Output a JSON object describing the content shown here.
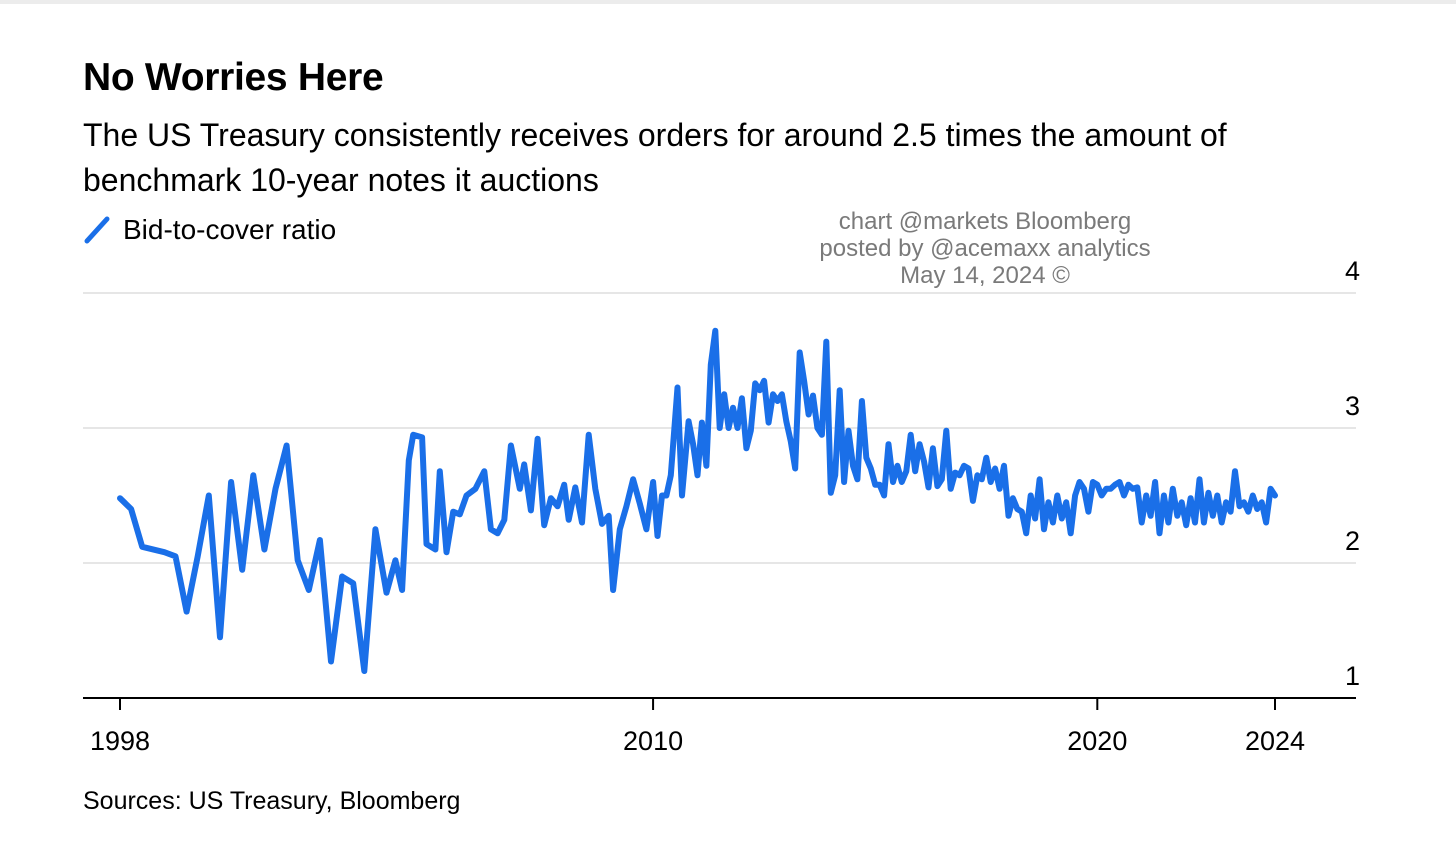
{
  "title": "No Worries Here",
  "subtitle": "The US Treasury consistently receives orders for around 2.5 times the amount of benchmark 10-year notes it auctions",
  "source": "Sources: US Treasury, Bloomberg",
  "watermark": {
    "line1": "chart @markets Bloomberg",
    "line2": "posted by @acemaxx analytics",
    "line3": "May 14, 2024 ©"
  },
  "colors": {
    "series": "#1a6fe8",
    "grid": "#e6e6e6",
    "axis": "#000000"
  },
  "chart_data": {
    "type": "line",
    "legend_placement": "top-left",
    "grid": true,
    "xlim": [
      1998,
      2025.5
    ],
    "ylim": [
      1,
      4
    ],
    "y_ticks": [
      1,
      2,
      3,
      4
    ],
    "x_ticks": [
      1998,
      2010,
      2020,
      2024
    ],
    "series": [
      {
        "name": "Bid-to-cover ratio",
        "points": [
          [
            1998.0,
            2.48
          ],
          [
            1998.25,
            2.4
          ],
          [
            1998.5,
            2.12
          ],
          [
            1999.0,
            2.08
          ],
          [
            1999.25,
            2.05
          ],
          [
            1999.5,
            1.64
          ],
          [
            1999.75,
            2.05
          ],
          [
            2000.0,
            2.5
          ],
          [
            2000.25,
            1.45
          ],
          [
            2000.5,
            2.6
          ],
          [
            2000.75,
            1.95
          ],
          [
            2001.0,
            2.65
          ],
          [
            2001.25,
            2.1
          ],
          [
            2001.5,
            2.55
          ],
          [
            2001.75,
            2.87
          ],
          [
            2002.0,
            2.02
          ],
          [
            2002.25,
            1.8
          ],
          [
            2002.5,
            2.17
          ],
          [
            2002.75,
            1.27
          ],
          [
            2003.0,
            1.9
          ],
          [
            2003.25,
            1.85
          ],
          [
            2003.5,
            1.2
          ],
          [
            2003.75,
            2.25
          ],
          [
            2004.0,
            1.78
          ],
          [
            2004.2,
            2.02
          ],
          [
            2004.35,
            1.8
          ],
          [
            2004.5,
            2.76
          ],
          [
            2004.6,
            2.95
          ],
          [
            2004.8,
            2.93
          ],
          [
            2004.9,
            2.14
          ],
          [
            2005.0,
            2.12
          ],
          [
            2005.1,
            2.1
          ],
          [
            2005.2,
            2.68
          ],
          [
            2005.35,
            2.08
          ],
          [
            2005.5,
            2.38
          ],
          [
            2005.65,
            2.36
          ],
          [
            2005.8,
            2.5
          ],
          [
            2006.0,
            2.55
          ],
          [
            2006.2,
            2.68
          ],
          [
            2006.35,
            2.25
          ],
          [
            2006.5,
            2.22
          ],
          [
            2006.65,
            2.32
          ],
          [
            2006.8,
            2.87
          ],
          [
            2007.0,
            2.55
          ],
          [
            2007.1,
            2.73
          ],
          [
            2007.25,
            2.39
          ],
          [
            2007.4,
            2.92
          ],
          [
            2007.55,
            2.28
          ],
          [
            2007.7,
            2.48
          ],
          [
            2007.85,
            2.42
          ],
          [
            2008.0,
            2.58
          ],
          [
            2008.1,
            2.32
          ],
          [
            2008.25,
            2.56
          ],
          [
            2008.4,
            2.3
          ],
          [
            2008.55,
            2.95
          ],
          [
            2008.7,
            2.55
          ],
          [
            2008.85,
            2.29
          ],
          [
            2009.0,
            2.35
          ],
          [
            2009.1,
            1.8
          ],
          [
            2009.25,
            2.25
          ],
          [
            2009.4,
            2.42
          ],
          [
            2009.55,
            2.62
          ],
          [
            2009.7,
            2.44
          ],
          [
            2009.85,
            2.25
          ],
          [
            2010.0,
            2.6
          ],
          [
            2010.1,
            2.2
          ],
          [
            2010.2,
            2.5
          ],
          [
            2010.3,
            2.5
          ],
          [
            2010.4,
            2.65
          ],
          [
            2010.55,
            3.3
          ],
          [
            2010.65,
            2.5
          ],
          [
            2010.8,
            3.05
          ],
          [
            2010.9,
            2.88
          ],
          [
            2011.0,
            2.65
          ],
          [
            2011.1,
            3.04
          ],
          [
            2011.2,
            2.72
          ],
          [
            2011.3,
            3.47
          ],
          [
            2011.4,
            3.72
          ],
          [
            2011.5,
            3.0
          ],
          [
            2011.6,
            3.25
          ],
          [
            2011.7,
            3.0
          ],
          [
            2011.8,
            3.15
          ],
          [
            2011.9,
            3.0
          ],
          [
            2012.0,
            3.22
          ],
          [
            2012.1,
            2.85
          ],
          [
            2012.2,
            2.98
          ],
          [
            2012.3,
            3.33
          ],
          [
            2012.4,
            3.28
          ],
          [
            2012.5,
            3.35
          ],
          [
            2012.6,
            3.04
          ],
          [
            2012.7,
            3.25
          ],
          [
            2012.8,
            3.2
          ],
          [
            2012.9,
            3.25
          ],
          [
            2013.0,
            3.05
          ],
          [
            2013.1,
            2.9
          ],
          [
            2013.2,
            2.7
          ],
          [
            2013.3,
            3.56
          ],
          [
            2013.4,
            3.35
          ],
          [
            2013.5,
            3.1
          ],
          [
            2013.6,
            3.24
          ],
          [
            2013.7,
            3.0
          ],
          [
            2013.8,
            2.95
          ],
          [
            2013.9,
            3.64
          ],
          [
            2014.0,
            2.52
          ],
          [
            2014.1,
            2.65
          ],
          [
            2014.2,
            3.28
          ],
          [
            2014.3,
            2.6
          ],
          [
            2014.4,
            2.98
          ],
          [
            2014.5,
            2.72
          ],
          [
            2014.6,
            2.62
          ],
          [
            2014.7,
            3.2
          ],
          [
            2014.8,
            2.78
          ],
          [
            2014.9,
            2.7
          ],
          [
            2015.0,
            2.58
          ],
          [
            2015.1,
            2.58
          ],
          [
            2015.2,
            2.5
          ],
          [
            2015.3,
            2.88
          ],
          [
            2015.4,
            2.6
          ],
          [
            2015.5,
            2.72
          ],
          [
            2015.6,
            2.6
          ],
          [
            2015.7,
            2.68
          ],
          [
            2015.8,
            2.95
          ],
          [
            2015.9,
            2.68
          ],
          [
            2016.0,
            2.88
          ],
          [
            2016.1,
            2.75
          ],
          [
            2016.2,
            2.56
          ],
          [
            2016.3,
            2.85
          ],
          [
            2016.4,
            2.57
          ],
          [
            2016.5,
            2.62
          ],
          [
            2016.6,
            2.98
          ],
          [
            2016.7,
            2.55
          ],
          [
            2016.8,
            2.67
          ],
          [
            2016.9,
            2.65
          ],
          [
            2017.0,
            2.72
          ],
          [
            2017.1,
            2.7
          ],
          [
            2017.2,
            2.46
          ],
          [
            2017.3,
            2.65
          ],
          [
            2017.4,
            2.62
          ],
          [
            2017.5,
            2.78
          ],
          [
            2017.6,
            2.6
          ],
          [
            2017.7,
            2.7
          ],
          [
            2017.8,
            2.55
          ],
          [
            2017.9,
            2.72
          ],
          [
            2018.0,
            2.35
          ],
          [
            2018.1,
            2.48
          ],
          [
            2018.2,
            2.4
          ],
          [
            2018.3,
            2.38
          ],
          [
            2018.4,
            2.22
          ],
          [
            2018.5,
            2.5
          ],
          [
            2018.6,
            2.33
          ],
          [
            2018.7,
            2.62
          ],
          [
            2018.8,
            2.25
          ],
          [
            2018.9,
            2.45
          ],
          [
            2019.0,
            2.3
          ],
          [
            2019.1,
            2.5
          ],
          [
            2019.2,
            2.33
          ],
          [
            2019.3,
            2.45
          ],
          [
            2019.4,
            2.22
          ],
          [
            2019.5,
            2.5
          ],
          [
            2019.6,
            2.6
          ],
          [
            2019.7,
            2.55
          ],
          [
            2019.8,
            2.38
          ],
          [
            2019.9,
            2.6
          ],
          [
            2020.0,
            2.58
          ],
          [
            2020.1,
            2.5
          ],
          [
            2020.2,
            2.55
          ],
          [
            2020.3,
            2.55
          ],
          [
            2020.4,
            2.58
          ],
          [
            2020.5,
            2.6
          ],
          [
            2020.6,
            2.5
          ],
          [
            2020.7,
            2.58
          ],
          [
            2020.8,
            2.55
          ],
          [
            2020.9,
            2.56
          ],
          [
            2021.0,
            2.3
          ],
          [
            2021.1,
            2.5
          ],
          [
            2021.2,
            2.35
          ],
          [
            2021.3,
            2.6
          ],
          [
            2021.4,
            2.22
          ],
          [
            2021.5,
            2.5
          ],
          [
            2021.6,
            2.3
          ],
          [
            2021.7,
            2.55
          ],
          [
            2021.8,
            2.35
          ],
          [
            2021.9,
            2.45
          ],
          [
            2022.0,
            2.28
          ],
          [
            2022.1,
            2.48
          ],
          [
            2022.2,
            2.3
          ],
          [
            2022.3,
            2.62
          ],
          [
            2022.4,
            2.3
          ],
          [
            2022.5,
            2.52
          ],
          [
            2022.6,
            2.35
          ],
          [
            2022.7,
            2.5
          ],
          [
            2022.8,
            2.3
          ],
          [
            2022.9,
            2.45
          ],
          [
            2023.0,
            2.38
          ],
          [
            2023.1,
            2.68
          ],
          [
            2023.2,
            2.42
          ],
          [
            2023.3,
            2.45
          ],
          [
            2023.4,
            2.38
          ],
          [
            2023.5,
            2.5
          ],
          [
            2023.6,
            2.4
          ],
          [
            2023.7,
            2.45
          ],
          [
            2023.8,
            2.3
          ],
          [
            2023.9,
            2.55
          ],
          [
            2024.0,
            2.5
          ]
        ]
      }
    ]
  }
}
